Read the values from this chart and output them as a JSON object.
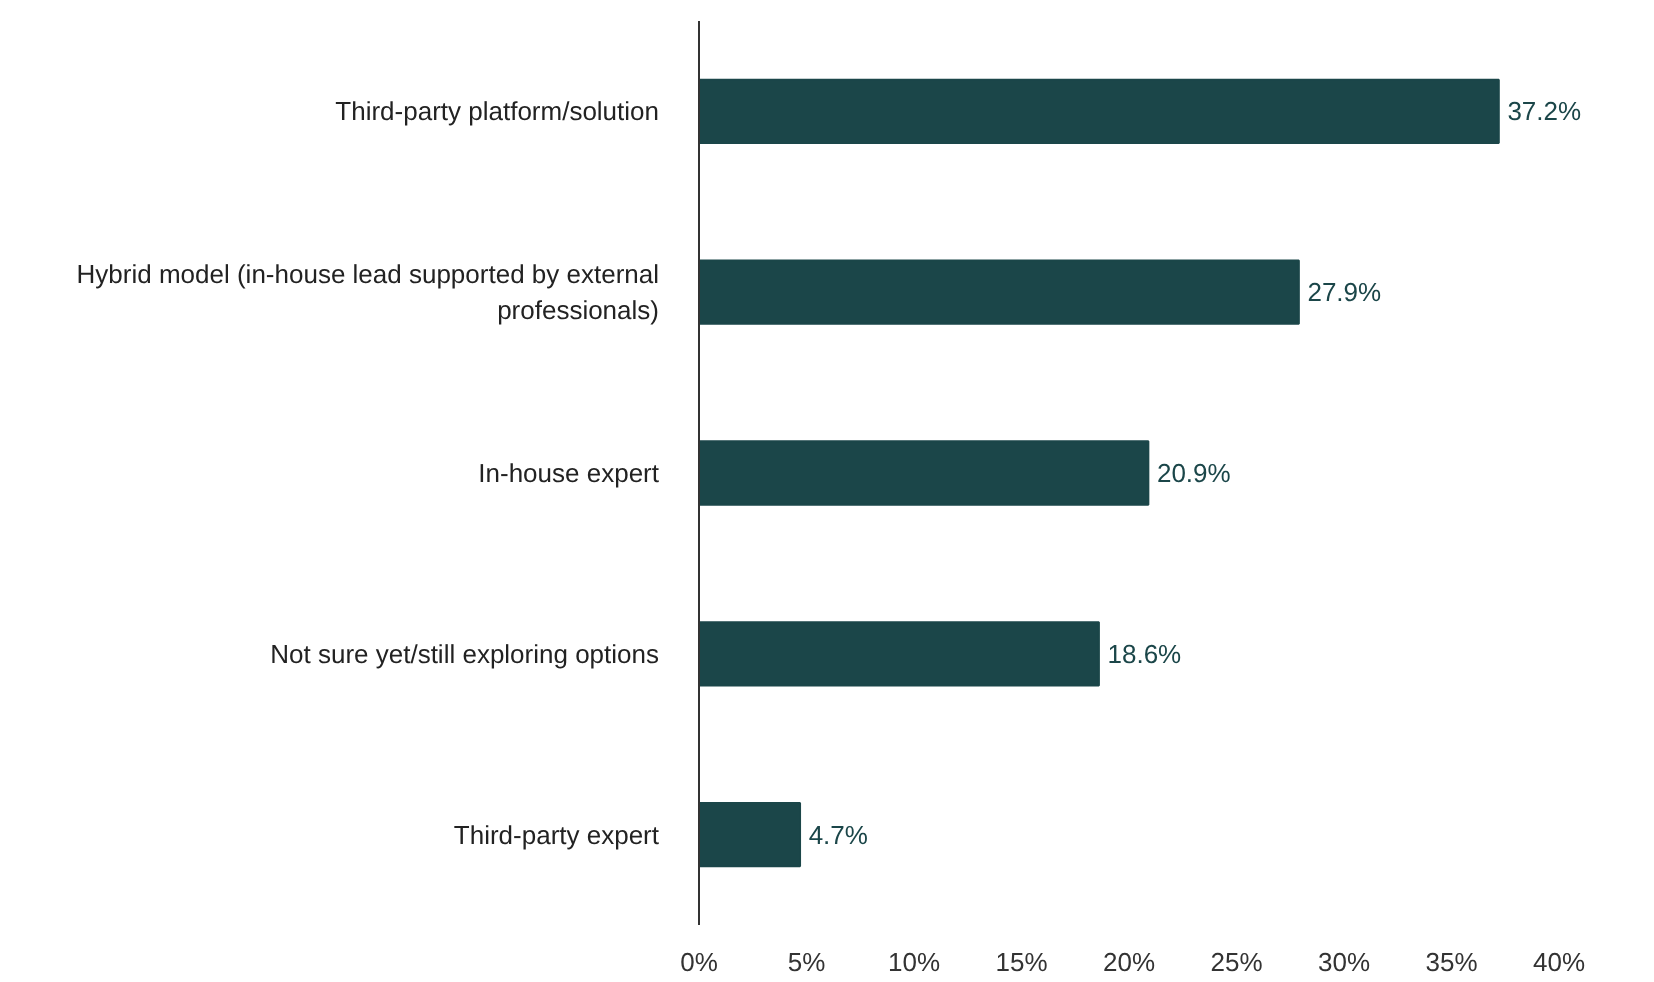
{
  "chart_data": {
    "type": "bar",
    "orientation": "horizontal",
    "categories": [
      "Third-party platform/solution",
      "Hybrid model (in-house lead supported by external professionals)",
      "In-house expert",
      "Not sure yet/still exploring options",
      "Third-party expert"
    ],
    "values": [
      37.2,
      27.9,
      20.9,
      18.6,
      4.7
    ],
    "color": "#1b4649",
    "value_labels": [
      "37.2%",
      "27.9%",
      "20.9%",
      "18.6%",
      "4.7%"
    ],
    "xlim": [
      0,
      40
    ],
    "xticks": [
      {
        "value": 0,
        "label": "0%"
      },
      {
        "value": 5,
        "label": "5%"
      },
      {
        "value": 10,
        "label": "10%"
      },
      {
        "value": 15,
        "label": "15%"
      },
      {
        "value": 20,
        "label": "20%"
      },
      {
        "value": 25,
        "label": "25%"
      },
      {
        "value": 30,
        "label": "30%"
      },
      {
        "value": 35,
        "label": "35%"
      },
      {
        "value": 40,
        "label": "40%"
      }
    ],
    "grid": false
  }
}
